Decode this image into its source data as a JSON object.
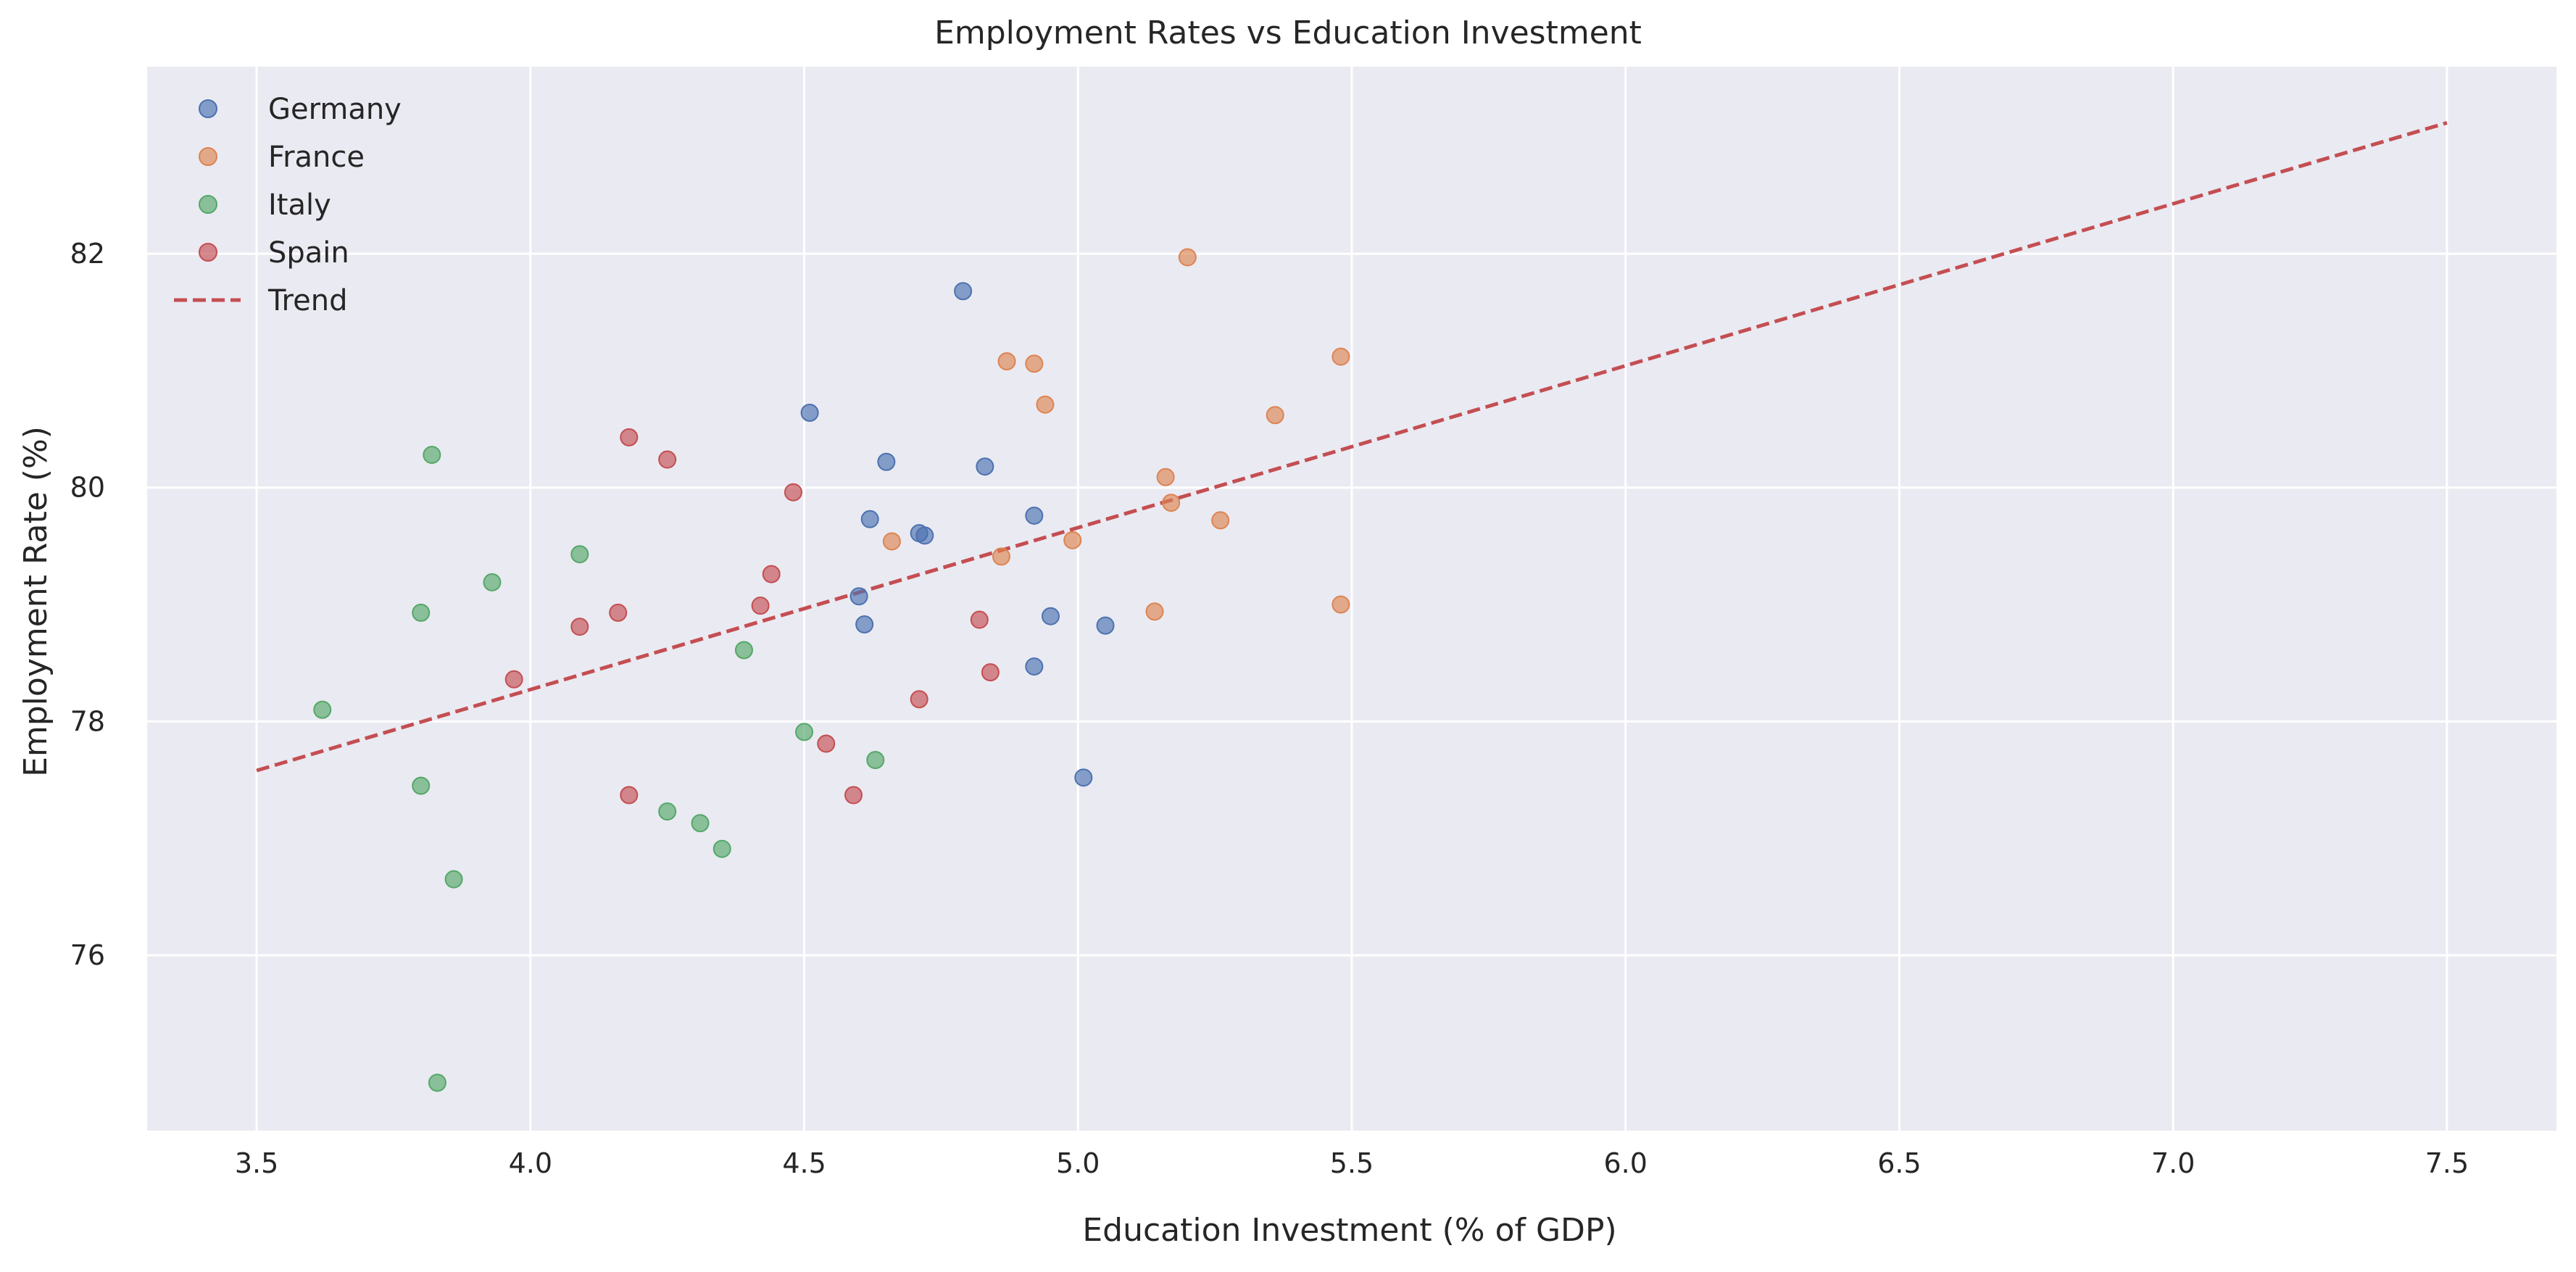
{
  "chart_data": {
    "type": "scatter",
    "title": "Employment Rates vs Education Investment",
    "xlabel": "Education Investment (% of GDP)",
    "ylabel": "Employment Rate (%)",
    "xlim": [
      3.3,
      7.7
    ],
    "ylim": [
      74.5,
      83.6
    ],
    "xticks": [
      3.5,
      4.0,
      4.5,
      5.0,
      5.5,
      6.0,
      6.5,
      7.0,
      7.5
    ],
    "xtick_labels": [
      "3.5",
      "4.0",
      "4.5",
      "5.0",
      "5.5",
      "6.0",
      "6.5",
      "7.0",
      "7.5"
    ],
    "yticks": [
      76,
      78,
      80,
      82
    ],
    "ytick_labels": [
      "76",
      "78",
      "80",
      "82"
    ],
    "grid": true,
    "legend_position": "top-left",
    "background_color": "#eaeaf2",
    "series": [
      {
        "name": "Germany",
        "color": "#4c72b0",
        "points": [
          [
            4.79,
            81.68
          ],
          [
            4.51,
            80.64
          ],
          [
            4.65,
            80.22
          ],
          [
            4.83,
            80.18
          ],
          [
            4.62,
            79.73
          ],
          [
            4.92,
            79.76
          ],
          [
            4.71,
            79.61
          ],
          [
            4.72,
            79.59
          ],
          [
            4.6,
            79.07
          ],
          [
            4.61,
            78.83
          ],
          [
            4.95,
            78.9
          ],
          [
            5.05,
            78.82
          ],
          [
            4.92,
            78.47
          ],
          [
            5.01,
            77.52
          ]
        ]
      },
      {
        "name": "France",
        "color": "#dd8452",
        "points": [
          [
            5.2,
            81.97
          ],
          [
            4.87,
            81.08
          ],
          [
            4.92,
            81.06
          ],
          [
            5.48,
            81.12
          ],
          [
            4.94,
            80.71
          ],
          [
            5.36,
            80.62
          ],
          [
            5.16,
            80.09
          ],
          [
            5.17,
            79.87
          ],
          [
            5.26,
            79.72
          ],
          [
            4.66,
            79.54
          ],
          [
            4.99,
            79.55
          ],
          [
            4.86,
            79.41
          ],
          [
            5.14,
            78.94
          ],
          [
            5.48,
            79.0
          ]
        ]
      },
      {
        "name": "Italy",
        "color": "#55a868",
        "points": [
          [
            3.82,
            80.28
          ],
          [
            4.09,
            79.43
          ],
          [
            3.93,
            79.19
          ],
          [
            3.8,
            78.93
          ],
          [
            4.39,
            78.61
          ],
          [
            3.62,
            78.1
          ],
          [
            4.5,
            77.91
          ],
          [
            4.63,
            77.67
          ],
          [
            3.8,
            77.45
          ],
          [
            4.25,
            77.23
          ],
          [
            4.31,
            77.13
          ],
          [
            4.35,
            76.91
          ],
          [
            3.86,
            76.65
          ],
          [
            3.83,
            74.91
          ]
        ]
      },
      {
        "name": "Spain",
        "color": "#c44e52",
        "points": [
          [
            4.18,
            80.43
          ],
          [
            4.25,
            80.24
          ],
          [
            4.48,
            79.96
          ],
          [
            4.44,
            79.26
          ],
          [
            4.42,
            78.99
          ],
          [
            4.16,
            78.93
          ],
          [
            4.09,
            78.81
          ],
          [
            4.82,
            78.87
          ],
          [
            3.97,
            78.36
          ],
          [
            4.84,
            78.42
          ],
          [
            4.71,
            78.19
          ],
          [
            4.54,
            77.81
          ],
          [
            4.18,
            77.37
          ],
          [
            4.59,
            77.37
          ]
        ]
      }
    ],
    "trend": {
      "name": "Trend",
      "color": "#c44e52",
      "style": "dashed",
      "x": [
        3.5,
        7.5
      ],
      "y": [
        77.58,
        83.12
      ]
    }
  }
}
